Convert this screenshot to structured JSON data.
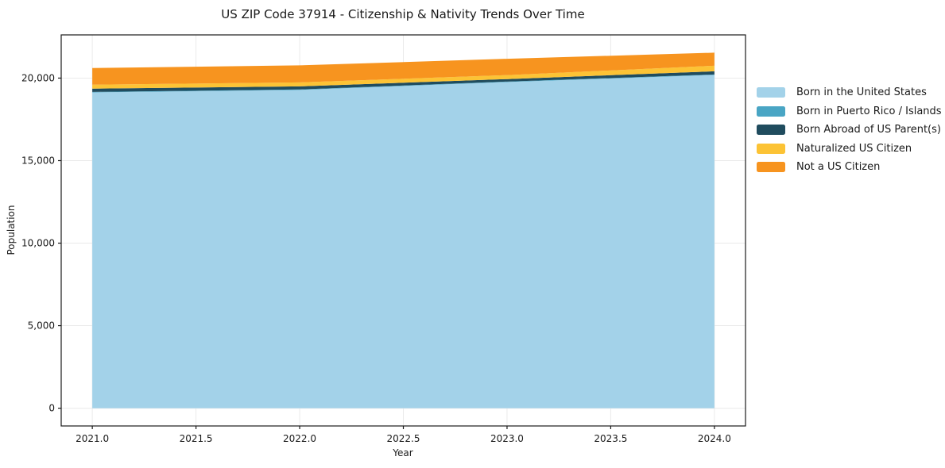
{
  "chart_data": {
    "type": "area",
    "stacked": true,
    "title": "US ZIP Code 37914 - Citizenship & Nativity Trends Over Time",
    "xlabel": "Year",
    "ylabel": "Population",
    "x": [
      2021,
      2022,
      2023,
      2024
    ],
    "series": [
      {
        "name": "Born in the United States",
        "color": "#a3d2e9",
        "values": [
          19130,
          19280,
          19760,
          20190
        ]
      },
      {
        "name": "Born in Puerto Rico / Islands",
        "color": "#49a5c4",
        "values": [
          30,
          30,
          30,
          30
        ]
      },
      {
        "name": "Born Abroad of US Parent(s)",
        "color": "#204c5e",
        "values": [
          200,
          190,
          150,
          190
        ]
      },
      {
        "name": "Naturalized US Citizen",
        "color": "#fcc335",
        "values": [
          240,
          240,
          240,
          340
        ]
      },
      {
        "name": "Not a US Citizen",
        "color": "#f7941f",
        "values": [
          1010,
          1030,
          990,
          790
        ]
      }
    ],
    "xticks": [
      2021.0,
      2021.5,
      2022.0,
      2022.5,
      2023.0,
      2023.5,
      2024.0
    ],
    "xtick_labels": [
      "2021.0",
      "2021.5",
      "2022.0",
      "2022.5",
      "2023.0",
      "2023.5",
      "2024.0"
    ],
    "yticks": [
      0,
      5000,
      10000,
      15000,
      20000
    ],
    "ytick_labels": [
      "0",
      "5,000",
      "10,000",
      "15,000",
      "20,000"
    ],
    "xlim": [
      2020.85,
      2024.15
    ],
    "ylim": [
      -1077,
      22617
    ],
    "grid": true,
    "legend_position": "right",
    "colors": {
      "grid": "#eaeaea",
      "spine": "#1a1a1a",
      "background": "#ffffff",
      "text": "#191919"
    }
  }
}
